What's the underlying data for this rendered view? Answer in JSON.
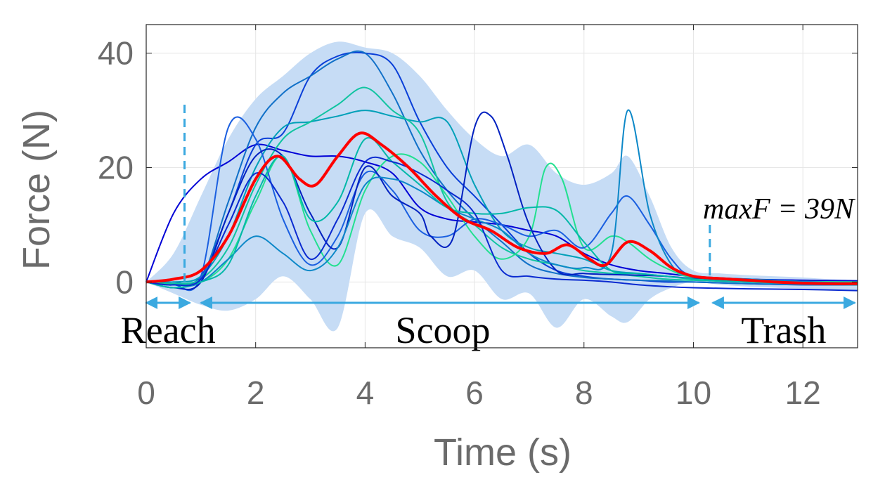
{
  "chart_data": {
    "type": "line",
    "xlabel": "Time (s)",
    "ylabel": "Force (N)",
    "xlim": [
      0,
      13
    ],
    "ylim": [
      -11.5,
      45
    ],
    "xticks": [
      0,
      2,
      4,
      6,
      8,
      10,
      12
    ],
    "yticks": [
      0,
      20,
      40
    ],
    "grid": true,
    "colors": {
      "mean": "#ff0000",
      "band": "#c6dcf5",
      "markers": "#3ba9e0",
      "trials": [
        "#0000d6",
        "#0a3fd8",
        "#1070c8",
        "#00a0b8",
        "#10c4a0",
        "#22e090",
        "#1a5fe0",
        "#0020c0",
        "#0d88c8",
        "#00b8a8",
        "#0a2ad0"
      ]
    },
    "phases": [
      {
        "label": "Reach",
        "start": 0,
        "end": 0.8
      },
      {
        "label": "Scoop",
        "start": 1.0,
        "end": 10.1
      },
      {
        "label": "Trash",
        "start": 10.35,
        "end": 12.95
      }
    ],
    "markers": [
      {
        "x": 0.7,
        "ymin": 0,
        "ymax": 31
      },
      {
        "x": 10.3,
        "ymin": 0,
        "ymax": 10
      }
    ],
    "annotation": "maxF = 39N",
    "mean": {
      "x": [
        0,
        0.5,
        1.0,
        1.5,
        2.0,
        2.4,
        2.8,
        3.1,
        3.5,
        3.9,
        4.3,
        4.8,
        5.3,
        5.8,
        6.3,
        6.8,
        7.3,
        7.7,
        8.1,
        8.4,
        8.8,
        9.2,
        9.6,
        10.0,
        10.5,
        11.0,
        11.5,
        12.0,
        12.5,
        13.0
      ],
      "y": [
        0,
        0.5,
        2,
        8,
        18,
        22,
        18,
        17,
        22,
        26,
        24,
        20,
        15,
        11,
        9,
        6,
        5,
        6.5,
        4,
        3,
        7,
        5.5,
        2.5,
        1,
        0.6,
        0.3,
        0,
        -0.2,
        -0.3,
        -0.3
      ]
    },
    "band": {
      "x": [
        0,
        0.5,
        1.0,
        1.5,
        2.0,
        2.5,
        3.0,
        3.5,
        4.0,
        4.5,
        5.0,
        5.5,
        6.0,
        6.5,
        7.0,
        7.5,
        8.0,
        8.5,
        8.8,
        9.2,
        9.6,
        10.0,
        10.5,
        11.0,
        11.5,
        12.0,
        12.5,
        13.0
      ],
      "upper": [
        0,
        5,
        15,
        25,
        32,
        36,
        40,
        42,
        41,
        40,
        36,
        30,
        25,
        22,
        24,
        19,
        17,
        19,
        22,
        15,
        6,
        2,
        1.5,
        1.2,
        1.0,
        0.8,
        0.5,
        0.4
      ],
      "lower": [
        0,
        -2,
        -4,
        -5,
        -3,
        1,
        -3,
        -8,
        12,
        8,
        6,
        1,
        2,
        -3,
        -2,
        -8,
        -3,
        -6,
        -7,
        -3,
        -1,
        0,
        -0.5,
        -0.8,
        -1.0,
        -1.2,
        -1.3,
        -1.5
      ]
    },
    "series": [
      {
        "x": [
          0,
          0.5,
          1.0,
          1.5,
          2.0,
          2.5,
          3.0,
          3.5,
          4.0,
          4.5,
          5.0,
          5.5,
          6.0,
          6.5,
          7.0,
          7.5,
          8.0,
          8.5,
          9.0,
          9.5,
          10.0,
          11.0,
          12.0,
          13.0
        ],
        "y": [
          0,
          12,
          18,
          21,
          24,
          23,
          22,
          22,
          21,
          19,
          13,
          11,
          10.5,
          10,
          9,
          8,
          5,
          3,
          2,
          1.5,
          1,
          0.5,
          0.3,
          0.2
        ]
      },
      {
        "x": [
          0,
          0.5,
          1.0,
          1.5,
          2.0,
          2.5,
          3.0,
          3.5,
          4.0,
          4.5,
          5.0,
          5.5,
          6.0,
          6.5,
          7.0,
          7.5,
          8.0,
          8.5,
          9.0,
          9.5,
          10.0,
          11.0,
          12.0,
          13.0
        ],
        "y": [
          0,
          -0.5,
          1,
          12,
          24,
          26,
          36,
          39.5,
          40,
          38,
          28,
          20,
          15,
          10,
          5,
          2,
          1,
          0.5,
          0.3,
          0,
          0,
          -0.3,
          -0.5,
          -0.5
        ]
      },
      {
        "x": [
          0,
          0.5,
          1.0,
          1.5,
          2.0,
          2.5,
          3.0,
          3.5,
          4.0,
          4.5,
          5.0,
          5.5,
          6.0,
          6.5,
          7.0,
          7.5,
          8.0,
          8.5,
          9.0,
          9.5,
          10.0,
          11.0,
          12.0,
          13.0
        ],
        "y": [
          0,
          0,
          0.5,
          14,
          27,
          33,
          36,
          39,
          40,
          33,
          23,
          16,
          11,
          7,
          3,
          1.5,
          0.8,
          0.5,
          0.3,
          0.2,
          0,
          -0.3,
          -0.5,
          -0.5
        ]
      },
      {
        "x": [
          0,
          0.5,
          1.0,
          1.5,
          2.0,
          2.5,
          3.0,
          3.5,
          4.0,
          4.5,
          5.0,
          5.5,
          6.0,
          6.5,
          7.0,
          7.5,
          8.0,
          8.5,
          9.0,
          9.5,
          10.0,
          11.0,
          12.0,
          13.0
        ],
        "y": [
          0,
          0,
          1,
          8,
          20,
          27,
          28,
          29,
          30,
          29,
          28,
          28,
          17,
          9,
          6,
          5,
          4,
          2,
          1.5,
          1,
          0.6,
          0.2,
          0,
          0
        ]
      },
      {
        "x": [
          0,
          0.5,
          1.0,
          1.5,
          2.0,
          2.5,
          3.0,
          3.5,
          4.0,
          4.5,
          5.0,
          5.5,
          6.0,
          6.5,
          7.0,
          7.5,
          8.0,
          8.5,
          9.0,
          9.5,
          10.0,
          11.0,
          12.0,
          13.0
        ],
        "y": [
          0,
          -0.3,
          0.5,
          6,
          17,
          25,
          28,
          31,
          34,
          30,
          26,
          14,
          10,
          6,
          4,
          3,
          2,
          1.5,
          1,
          0.5,
          0.3,
          0,
          -0.2,
          -0.3
        ]
      },
      {
        "x": [
          0,
          0.5,
          1.0,
          1.5,
          2.0,
          2.5,
          3.0,
          3.5,
          4.0,
          4.5,
          5.0,
          5.5,
          6.0,
          6.5,
          7.0,
          7.3,
          7.6,
          8.0,
          8.5,
          8.8,
          9.2,
          9.6,
          10.0,
          11.0,
          12.0,
          13.0
        ],
        "y": [
          0,
          -0.5,
          0,
          4,
          14,
          22,
          9,
          3,
          16,
          22,
          21,
          15,
          8,
          4,
          8,
          20,
          18,
          6,
          8,
          7,
          4,
          2,
          0.8,
          0.4,
          0.1,
          0
        ]
      },
      {
        "x": [
          0,
          0.5,
          1.0,
          1.5,
          2.0,
          2.5,
          3.0,
          3.5,
          4.0,
          4.5,
          5.0,
          5.5,
          6.0,
          6.5,
          7.0,
          7.5,
          8.0,
          8.5,
          8.8,
          9.2,
          9.6,
          10.0,
          11.0,
          12.0,
          13.0
        ],
        "y": [
          0,
          -0.5,
          1,
          27,
          25,
          11,
          3,
          8,
          19,
          16,
          9,
          8,
          11,
          10,
          8,
          9,
          6,
          12,
          15,
          10,
          4,
          1,
          0.3,
          0,
          -0.2
        ]
      },
      {
        "x": [
          0,
          0.5,
          1.0,
          1.5,
          2.0,
          2.5,
          3.0,
          3.5,
          4.0,
          4.5,
          5.0,
          5.2,
          5.6,
          6.0,
          6.3,
          6.6,
          7.0,
          7.5,
          8.0,
          8.5,
          9.0,
          9.5,
          10.0,
          11.0,
          12.0,
          13.0
        ],
        "y": [
          0,
          -1,
          0,
          12,
          22,
          22,
          12,
          6,
          20,
          15,
          12,
          8,
          7.5,
          27,
          29,
          22,
          10,
          2,
          1.5,
          1.3,
          1.2,
          1.0,
          0.6,
          0.2,
          -0.2,
          -0.5
        ]
      },
      {
        "x": [
          0,
          0.5,
          1.0,
          1.5,
          2.0,
          2.5,
          3.0,
          3.5,
          4.0,
          4.5,
          5.0,
          5.5,
          6.0,
          6.5,
          7.0,
          7.5,
          8.0,
          8.5,
          8.8,
          9.2,
          9.6,
          10.0,
          11.0,
          12.0,
          13.0
        ],
        "y": [
          0,
          -1,
          0,
          4,
          8,
          5,
          2,
          6,
          17,
          18,
          16,
          13,
          11,
          9,
          5,
          3,
          2.5,
          5,
          30,
          12,
          3,
          1,
          0.5,
          0.1,
          -0.3
        ]
      },
      {
        "x": [
          0,
          0.5,
          1.0,
          1.5,
          2.0,
          2.5,
          3.0,
          3.5,
          4.0,
          4.5,
          5.0,
          5.5,
          6.0,
          6.5,
          7.0,
          7.5,
          8.0,
          8.5,
          9.0,
          9.5,
          10.0,
          11.0,
          12.0,
          13.0
        ],
        "y": [
          0,
          -1,
          0,
          3,
          15,
          22,
          11,
          14,
          25,
          21,
          17,
          13,
          12,
          12,
          13,
          12.5,
          7,
          2,
          1.5,
          1,
          0.5,
          0,
          -0.3,
          -0.5
        ]
      },
      {
        "x": [
          0,
          0.5,
          1.0,
          1.5,
          2.0,
          2.5,
          3.0,
          3.5,
          4.0,
          4.5,
          5.0,
          5.5,
          6.0,
          6.5,
          7.0,
          7.5,
          8.0,
          8.5,
          9.0,
          9.5,
          10.0,
          11.0,
          12.0,
          13.0
        ],
        "y": [
          0,
          -0.5,
          0.5,
          10,
          19,
          14,
          4,
          11,
          21,
          21,
          19,
          16,
          12,
          2,
          1,
          0.5,
          0.3,
          0,
          -0.5,
          -0.8,
          -1,
          -1.2,
          -1.3,
          -1.5
        ]
      }
    ]
  }
}
